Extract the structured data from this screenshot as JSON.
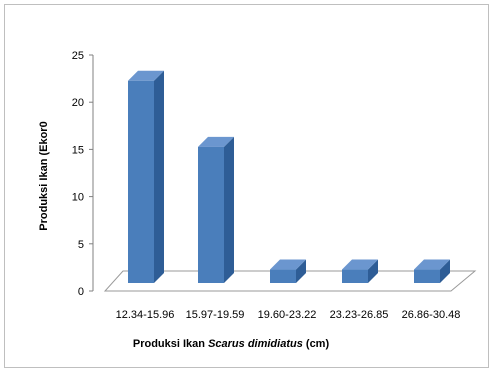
{
  "chart_data": {
    "type": "bar",
    "categories": [
      "12.34-15.96",
      "15.97-19.59",
      "19.60-23.22",
      "23.23-26.85",
      "26.86-30.48"
    ],
    "values": [
      21,
      14,
      1,
      1,
      1
    ],
    "title": "",
    "xlabel": {
      "prefix": "Produksi Ikan ",
      "species": "Scarus dimidiatus",
      "suffix": " (cm)"
    },
    "ylabel": "Produksi Ikan (Ekor0",
    "yticks": [
      "0",
      "5",
      "10",
      "15",
      "20",
      "25"
    ],
    "ylim": [
      0,
      25
    ],
    "grid": false,
    "legend": "none",
    "bar_color": "#4a7ebb",
    "bar_top_color": "#6b96cf",
    "bar_side_color": "#2e5d96"
  }
}
